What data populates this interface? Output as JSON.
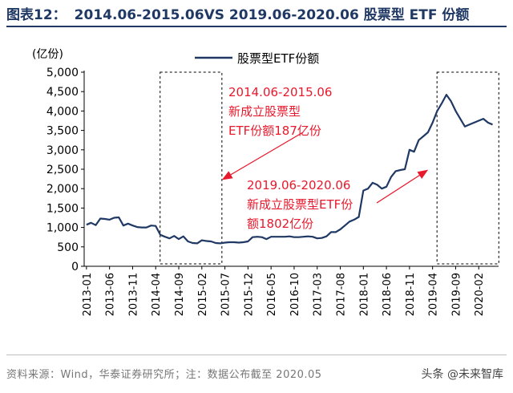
{
  "header": {
    "figure_label": "图表12：",
    "figure_title": "2014.06-2015.06VS 2019.06-2020.06 股票型 ETF 份额"
  },
  "footer": {
    "source": "资料来源：Wind，华泰证券研究所；注：数据公布截至 2020.05",
    "watermark": "头条 @未来智库"
  },
  "colors": {
    "line": "#1f3864",
    "annotation": "#e8192c",
    "title": "#1f3864"
  },
  "chart_data": {
    "type": "line",
    "title": "2014.06-2015.06VS 2019.06-2020.06 股票型 ETF 份额",
    "ylabel": "(亿份)",
    "xlabel": "",
    "ylim": [
      0,
      5000
    ],
    "yticks": [
      0,
      500,
      1000,
      1500,
      2000,
      2500,
      3000,
      3500,
      4000,
      4500,
      5000
    ],
    "ytick_labels": [
      "0",
      "500",
      "1,000",
      "1,500",
      "2,000",
      "2,500",
      "3,000",
      "3,500",
      "4,000",
      "4,500",
      "5,000"
    ],
    "xlim": [
      "2013-01",
      "2020-05"
    ],
    "xtick_labels": [
      "2013-01",
      "2013-06",
      "2013-11",
      "2014-04",
      "2014-09",
      "2015-02",
      "2015-07",
      "2015-12",
      "2016-05",
      "2016-10",
      "2017-03",
      "2017-08",
      "2018-01",
      "2018-06",
      "2018-11",
      "2019-04",
      "2019-09",
      "2020-02"
    ],
    "legend": "top-center",
    "grid": false,
    "series": [
      {
        "name": "股票型ETF份额",
        "x": [
          "2013-01",
          "2013-02",
          "2013-03",
          "2013-04",
          "2013-05",
          "2013-06",
          "2013-07",
          "2013-08",
          "2013-09",
          "2013-10",
          "2013-11",
          "2013-12",
          "2014-01",
          "2014-02",
          "2014-03",
          "2014-04",
          "2014-05",
          "2014-06",
          "2014-07",
          "2014-08",
          "2014-09",
          "2014-10",
          "2014-11",
          "2014-12",
          "2015-01",
          "2015-02",
          "2015-03",
          "2015-04",
          "2015-05",
          "2015-06",
          "2015-07",
          "2015-08",
          "2015-09",
          "2015-10",
          "2015-11",
          "2015-12",
          "2016-01",
          "2016-02",
          "2016-03",
          "2016-04",
          "2016-05",
          "2016-06",
          "2016-07",
          "2016-08",
          "2016-09",
          "2016-10",
          "2016-11",
          "2016-12",
          "2017-01",
          "2017-02",
          "2017-03",
          "2017-04",
          "2017-05",
          "2017-06",
          "2017-07",
          "2017-08",
          "2017-09",
          "2017-10",
          "2017-11",
          "2017-12",
          "2018-01",
          "2018-02",
          "2018-03",
          "2018-04",
          "2018-05",
          "2018-06",
          "2018-07",
          "2018-08",
          "2018-09",
          "2018-10",
          "2018-11",
          "2018-12",
          "2019-01",
          "2019-02",
          "2019-03",
          "2019-04",
          "2019-05",
          "2019-06",
          "2019-07",
          "2019-08",
          "2019-09",
          "2019-10",
          "2019-11",
          "2019-12",
          "2020-01",
          "2020-02",
          "2020-03",
          "2020-04",
          "2020-05"
        ],
        "values": [
          1070,
          1120,
          1060,
          1230,
          1220,
          1200,
          1250,
          1260,
          1050,
          1100,
          1050,
          1010,
          1000,
          1000,
          1050,
          1040,
          810,
          760,
          720,
          780,
          700,
          770,
          640,
          600,
          590,
          670,
          650,
          640,
          600,
          590,
          610,
          620,
          620,
          610,
          620,
          640,
          750,
          760,
          750,
          700,
          760,
          760,
          760,
          760,
          770,
          750,
          750,
          760,
          770,
          760,
          720,
          730,
          770,
          880,
          880,
          950,
          1050,
          1150,
          1200,
          1270,
          1950,
          2000,
          2150,
          2100,
          2000,
          2050,
          2300,
          2450,
          2480,
          2500,
          3000,
          2950,
          3250,
          3350,
          3450,
          3700,
          4000,
          4200,
          4420,
          4250,
          4000,
          3800,
          3600,
          3650,
          3700,
          3750,
          3800,
          3700,
          3650
        ],
        "x_start": "2013-01"
      }
    ],
    "highlight_periods": [
      {
        "start": "2014-06",
        "end": "2015-06"
      },
      {
        "start": "2019-06",
        "end": "2020-06"
      }
    ],
    "annotations": [
      {
        "lines": [
          "2014.06-2015.06",
          "新成立股票型",
          "ETF份额187亿份"
        ],
        "color": "#e8192c"
      },
      {
        "lines": [
          "2019.06-2020.06",
          "新成立股票型ETF份",
          "额1802亿份"
        ],
        "color": "#e8192c"
      }
    ]
  }
}
